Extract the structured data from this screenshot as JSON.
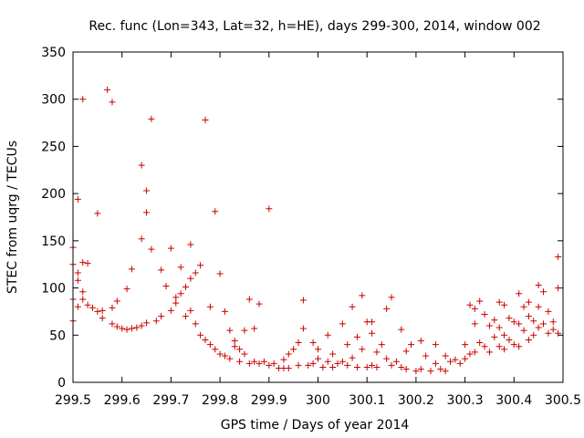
{
  "chart_data": {
    "type": "scatter",
    "title": "Rec. func (Lon=343, Lat=32, h=HE), days 299-300, 2014, window 002",
    "xlabel": "GPS time / Days of year 2014",
    "ylabel": "STEC from uqrg / TECUs",
    "xlim": [
      299.5,
      300.5
    ],
    "ylim": [
      0,
      350
    ],
    "xticks": [
      299.5,
      299.6,
      299.7,
      299.8,
      299.9,
      300,
      300.1,
      300.2,
      300.3,
      300.4,
      300.5
    ],
    "xtick_labels": [
      "299.5",
      "299.6",
      "299.7",
      "299.8",
      "299.9",
      "300",
      "300.1",
      "300.2",
      "300.3",
      "300.4",
      "300.5"
    ],
    "yticks": [
      0,
      50,
      100,
      150,
      200,
      250,
      300,
      350
    ],
    "ytick_labels": [
      "0",
      "50",
      "100",
      "150",
      "200",
      "250",
      "300",
      "350"
    ],
    "grid": false,
    "marker": "+",
    "color": "#cc0000",
    "series": [
      {
        "name": "STEC",
        "points": [
          [
            299.5,
            143
          ],
          [
            299.5,
            125
          ],
          [
            299.5,
            88
          ],
          [
            299.5,
            65
          ],
          [
            299.51,
            116
          ],
          [
            299.51,
            108
          ],
          [
            299.51,
            194
          ],
          [
            299.51,
            80
          ],
          [
            299.52,
            300
          ],
          [
            299.52,
            127
          ],
          [
            299.52,
            96
          ],
          [
            299.52,
            88
          ],
          [
            299.53,
            126
          ],
          [
            299.53,
            82
          ],
          [
            299.54,
            79
          ],
          [
            299.55,
            179
          ],
          [
            299.55,
            75
          ],
          [
            299.56,
            68
          ],
          [
            299.56,
            76
          ],
          [
            299.57,
            310
          ],
          [
            299.58,
            297
          ],
          [
            299.58,
            79
          ],
          [
            299.58,
            62
          ],
          [
            299.59,
            86
          ],
          [
            299.59,
            59
          ],
          [
            299.6,
            57
          ],
          [
            299.61,
            99
          ],
          [
            299.61,
            56
          ],
          [
            299.62,
            120
          ],
          [
            299.62,
            57
          ],
          [
            299.63,
            58
          ],
          [
            299.64,
            230
          ],
          [
            299.64,
            152
          ],
          [
            299.64,
            60
          ],
          [
            299.65,
            203
          ],
          [
            299.65,
            180
          ],
          [
            299.65,
            63
          ],
          [
            299.66,
            279
          ],
          [
            299.66,
            141
          ],
          [
            299.67,
            65
          ],
          [
            299.68,
            119
          ],
          [
            299.68,
            70
          ],
          [
            299.69,
            102
          ],
          [
            299.7,
            142
          ],
          [
            299.7,
            76
          ],
          [
            299.71,
            90
          ],
          [
            299.71,
            84
          ],
          [
            299.72,
            122
          ],
          [
            299.72,
            94
          ],
          [
            299.73,
            101
          ],
          [
            299.73,
            70
          ],
          [
            299.74,
            146
          ],
          [
            299.74,
            110
          ],
          [
            299.74,
            76
          ],
          [
            299.75,
            116
          ],
          [
            299.75,
            62
          ],
          [
            299.76,
            124
          ],
          [
            299.76,
            50
          ],
          [
            299.77,
            278
          ],
          [
            299.77,
            45
          ],
          [
            299.78,
            80
          ],
          [
            299.78,
            40
          ],
          [
            299.79,
            181
          ],
          [
            299.79,
            35
          ],
          [
            299.8,
            115
          ],
          [
            299.8,
            30
          ],
          [
            299.81,
            75
          ],
          [
            299.81,
            28
          ],
          [
            299.82,
            55
          ],
          [
            299.82,
            25
          ],
          [
            299.83,
            44
          ],
          [
            299.83,
            38
          ],
          [
            299.84,
            35
          ],
          [
            299.84,
            22
          ],
          [
            299.85,
            55
          ],
          [
            299.85,
            30
          ],
          [
            299.86,
            88
          ],
          [
            299.86,
            20
          ],
          [
            299.87,
            57
          ],
          [
            299.87,
            22
          ],
          [
            299.88,
            83
          ],
          [
            299.88,
            20
          ],
          [
            299.89,
            22
          ],
          [
            299.9,
            184
          ],
          [
            299.9,
            18
          ],
          [
            299.91,
            20
          ],
          [
            299.92,
            15
          ],
          [
            299.93,
            24
          ],
          [
            299.93,
            15
          ],
          [
            299.94,
            30
          ],
          [
            299.94,
            15
          ],
          [
            299.95,
            35
          ],
          [
            299.96,
            42
          ],
          [
            299.96,
            18
          ],
          [
            299.97,
            87
          ],
          [
            299.97,
            57
          ],
          [
            299.98,
            18
          ],
          [
            299.99,
            42
          ],
          [
            299.99,
            20
          ],
          [
            300,
            35
          ],
          [
            300,
            25
          ],
          [
            300.01,
            16
          ],
          [
            300.02,
            50
          ],
          [
            300.02,
            22
          ],
          [
            300.03,
            30
          ],
          [
            300.03,
            16
          ],
          [
            300.04,
            20
          ],
          [
            300.05,
            62
          ],
          [
            300.05,
            22
          ],
          [
            300.06,
            40
          ],
          [
            300.06,
            18
          ],
          [
            300.07,
            80
          ],
          [
            300.07,
            26
          ],
          [
            300.08,
            48
          ],
          [
            300.08,
            16
          ],
          [
            300.09,
            92
          ],
          [
            300.09,
            35
          ],
          [
            300.1,
            64
          ],
          [
            300.1,
            16
          ],
          [
            300.11,
            52
          ],
          [
            300.11,
            64
          ],
          [
            300.11,
            18
          ],
          [
            300.12,
            32
          ],
          [
            300.12,
            16
          ],
          [
            300.13,
            40
          ],
          [
            300.14,
            78
          ],
          [
            300.14,
            25
          ],
          [
            300.15,
            90
          ],
          [
            300.15,
            18
          ],
          [
            300.16,
            22
          ],
          [
            300.17,
            56
          ],
          [
            300.17,
            16
          ],
          [
            300.18,
            33
          ],
          [
            300.18,
            14
          ],
          [
            300.19,
            40
          ],
          [
            300.2,
            12
          ],
          [
            300.21,
            44
          ],
          [
            300.21,
            14
          ],
          [
            300.22,
            28
          ],
          [
            300.23,
            12
          ],
          [
            300.24,
            40
          ],
          [
            300.24,
            20
          ],
          [
            300.25,
            14
          ],
          [
            300.26,
            28
          ],
          [
            300.26,
            12
          ],
          [
            300.27,
            22
          ],
          [
            300.28,
            24
          ],
          [
            300.29,
            20
          ],
          [
            300.3,
            40
          ],
          [
            300.3,
            25
          ],
          [
            300.31,
            82
          ],
          [
            300.31,
            30
          ],
          [
            300.32,
            78
          ],
          [
            300.32,
            62
          ],
          [
            300.32,
            32
          ],
          [
            300.33,
            86
          ],
          [
            300.33,
            42
          ],
          [
            300.34,
            72
          ],
          [
            300.34,
            38
          ],
          [
            300.35,
            60
          ],
          [
            300.35,
            32
          ],
          [
            300.36,
            66
          ],
          [
            300.36,
            48
          ],
          [
            300.37,
            85
          ],
          [
            300.37,
            58
          ],
          [
            300.37,
            38
          ],
          [
            300.38,
            82
          ],
          [
            300.38,
            50
          ],
          [
            300.38,
            35
          ],
          [
            300.39,
            68
          ],
          [
            300.39,
            45
          ],
          [
            300.4,
            64
          ],
          [
            300.4,
            40
          ],
          [
            300.41,
            94
          ],
          [
            300.41,
            62
          ],
          [
            300.41,
            38
          ],
          [
            300.42,
            80
          ],
          [
            300.42,
            55
          ],
          [
            300.43,
            85
          ],
          [
            300.43,
            70
          ],
          [
            300.43,
            45
          ],
          [
            300.44,
            65
          ],
          [
            300.44,
            50
          ],
          [
            300.45,
            103
          ],
          [
            300.45,
            80
          ],
          [
            300.45,
            58
          ],
          [
            300.46,
            96
          ],
          [
            300.46,
            62
          ],
          [
            300.47,
            75
          ],
          [
            300.47,
            52
          ],
          [
            300.48,
            64
          ],
          [
            300.48,
            56
          ],
          [
            300.49,
            133
          ],
          [
            300.49,
            100
          ],
          [
            300.49,
            52
          ]
        ]
      }
    ]
  }
}
